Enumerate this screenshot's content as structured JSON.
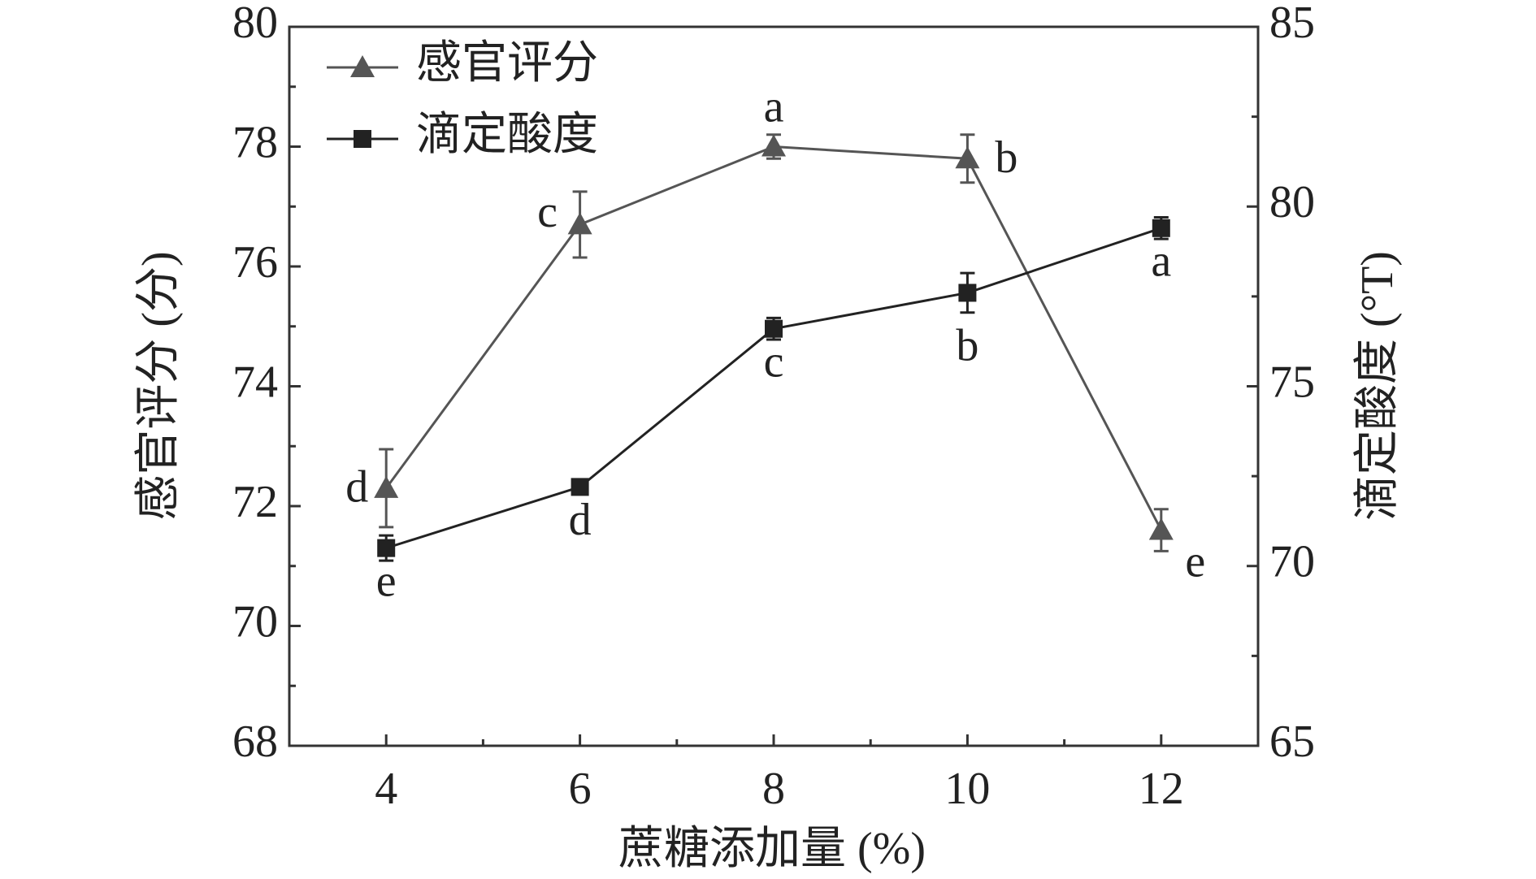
{
  "chart_data": {
    "type": "line",
    "x_label": "蔗糖添加量 (%)",
    "y_label": "感官评分 (分)",
    "y2_label": "滴定酸度 (°T)",
    "x": [
      4,
      6,
      8,
      10,
      12
    ],
    "xlim": [
      3,
      13
    ],
    "xticks": [
      4,
      6,
      8,
      10,
      12
    ],
    "ylim": [
      68,
      80
    ],
    "yticks": [
      68,
      70,
      72,
      74,
      76,
      78,
      80
    ],
    "y2lim": [
      65,
      85
    ],
    "y2ticks": [
      65,
      70,
      75,
      80,
      85
    ],
    "legend": "upper left",
    "series": [
      {
        "name": "感官评分",
        "color": "#555555",
        "marker": "triangle",
        "axis": "y",
        "values": [
          72.3,
          76.7,
          78.0,
          77.8,
          71.6
        ],
        "errors": [
          0.65,
          0.55,
          0.2,
          0.4,
          0.35
        ],
        "labels": [
          "d",
          "c",
          "a",
          "b",
          "e"
        ]
      },
      {
        "name": "滴定酸度",
        "color": "#222222",
        "marker": "square",
        "axis": "y2",
        "values": [
          70.5,
          72.2,
          76.6,
          77.6,
          79.4
        ],
        "errors": [
          0.35,
          0.2,
          0.3,
          0.55,
          0.3
        ],
        "labels": [
          "e",
          "d",
          "c",
          "b",
          "a"
        ]
      }
    ]
  }
}
